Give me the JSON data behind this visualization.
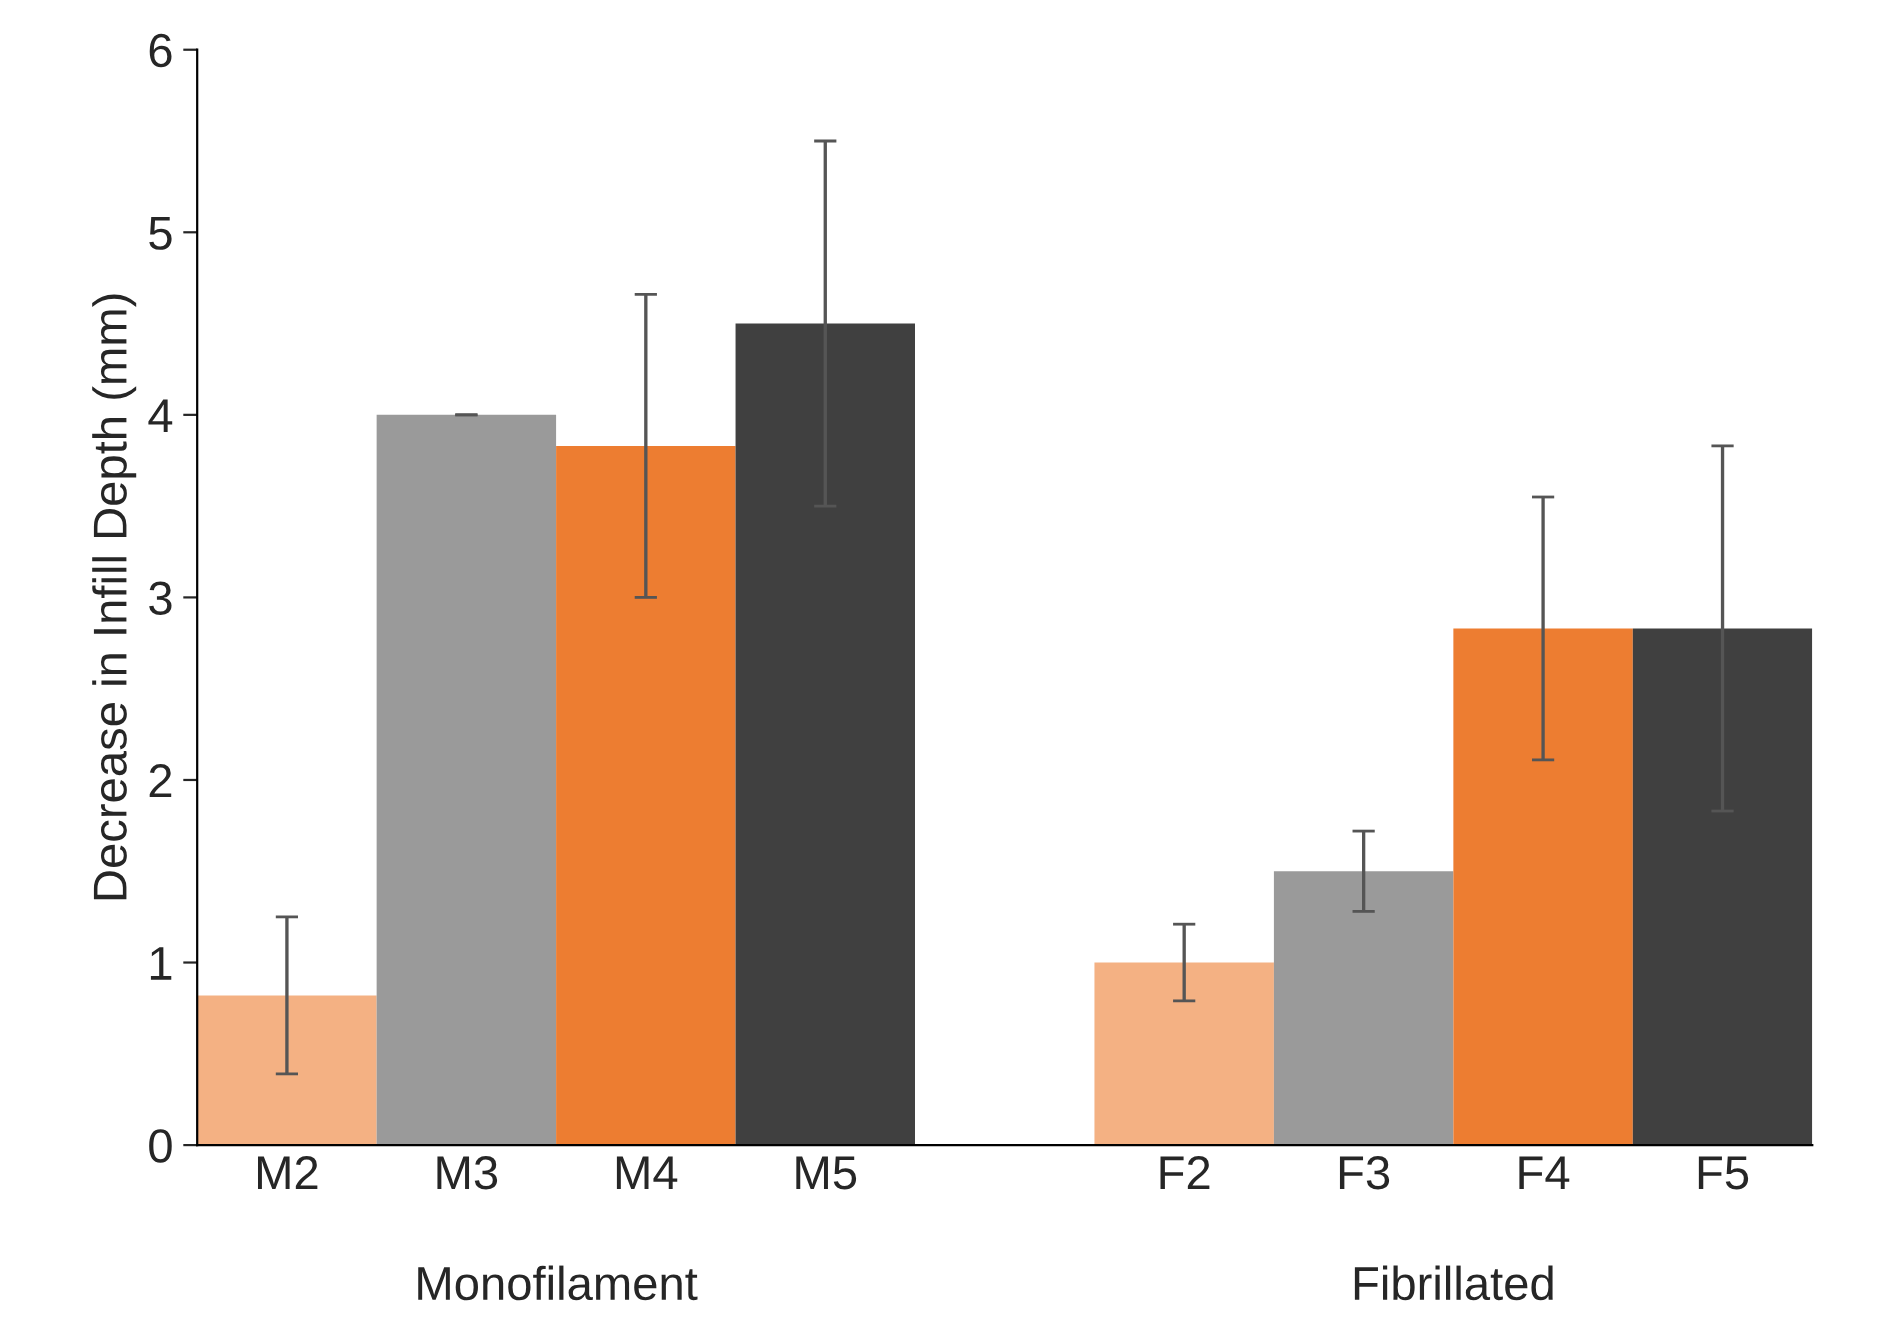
{
  "chart_data": {
    "type": "bar",
    "ylabel": "Decrease in Infill Depth (mm)",
    "categories": [
      "M2",
      "M3",
      "M4",
      "M5",
      null,
      "F2",
      "F3",
      "F4",
      "F5"
    ],
    "values": [
      0.82,
      4.0,
      3.83,
      4.5,
      null,
      1.0,
      1.5,
      2.83,
      2.83
    ],
    "errors": [
      0.43,
      0,
      0.83,
      1.0,
      null,
      0.21,
      0.22,
      0.72,
      1.0
    ],
    "colors": [
      "#f4b183",
      "#9a9a9a",
      "#ed7d31",
      "#404040",
      null,
      "#f4b183",
      "#9a9a9a",
      "#ed7d31",
      "#404040"
    ],
    "ylim": [
      0,
      6
    ],
    "yticks": [
      0,
      1,
      2,
      3,
      4,
      5,
      6
    ],
    "annotations": [
      "Monofilament",
      "Fibrillated"
    ],
    "grid": false,
    "legend": false
  }
}
